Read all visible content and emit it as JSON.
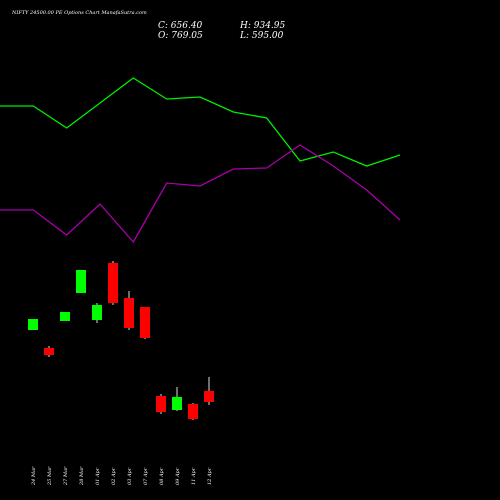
{
  "chart_data": [
    {
      "type": "candlestick",
      "title": "NIFTY 24500.00 PE Options Chart ManafaSutra.com",
      "annotations": [
        "C: 656.40",
        "H: 934.95",
        "O: 769.05",
        "L: 595.00"
      ],
      "categories": [
        "24 Mar",
        "25 Mar",
        "27 Mar",
        "28 Mar",
        "01 Apr",
        "02 Apr",
        "03 Apr",
        "07 Apr",
        "08 Apr",
        "09 Apr",
        "11 Apr",
        "12 Apr"
      ],
      "open": [
        170,
        152,
        179,
        207,
        180,
        237,
        202,
        193,
        104,
        90,
        96,
        109
      ],
      "high": [
        181,
        154,
        188,
        230,
        197,
        239,
        209,
        193,
        106,
        113,
        97,
        123
      ],
      "low": [
        170,
        143,
        179,
        207,
        177,
        195,
        170,
        161,
        86,
        89,
        80,
        95
      ],
      "close": [
        181,
        145,
        188,
        230,
        195,
        197,
        172,
        162,
        88,
        103,
        81,
        98
      ],
      "up_color": "#00ff00",
      "down_color": "#ff0000",
      "ylim": [
        0,
        500
      ]
    },
    {
      "type": "line",
      "categories": [
        null,
        null,
        null,
        null,
        null,
        null,
        null,
        null,
        null,
        null,
        null,
        null,
        null
      ],
      "series": [
        {
          "color": "#00ee00",
          "values": [
            394,
            394,
            372,
            397,
            422,
            401,
            403,
            388,
            382,
            339,
            348,
            334,
            345
          ]
        },
        {
          "color": "#aa00aa",
          "values": [
            290,
            290,
            265,
            296,
            258,
            317,
            314,
            331,
            332,
            355,
            334,
            310,
            280
          ]
        }
      ],
      "ylim": [
        0,
        500
      ]
    }
  ]
}
